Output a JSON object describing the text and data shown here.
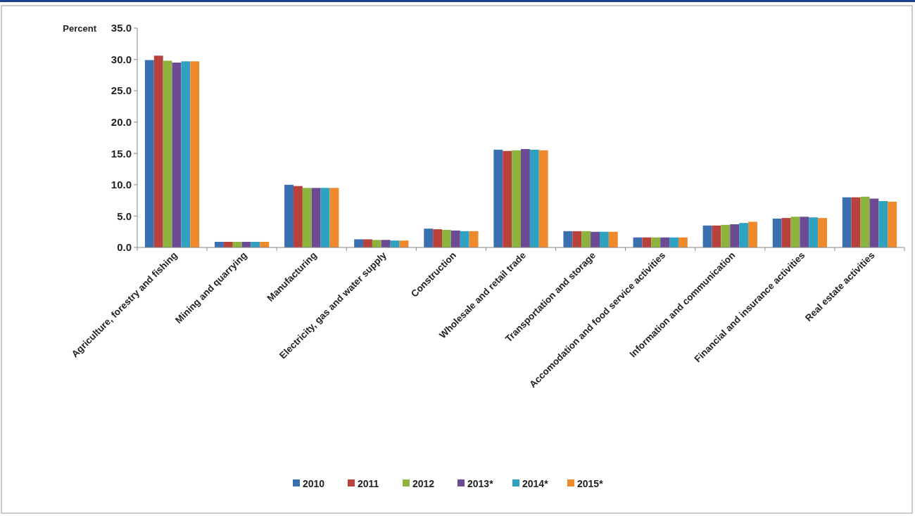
{
  "chart_data": {
    "type": "bar",
    "ylabel": "Percent",
    "categories": [
      "Agriculture, forestry and fishing",
      "Mining and quarrying",
      "Manufacturing",
      "Electricity, gas and water supply",
      "Construction",
      "Wholesale and retail trade",
      "Transportation and  storage",
      "Accomodation and food service activities",
      "Information and communication",
      "Financial and insurance activities",
      "Real estate activities"
    ],
    "series": [
      {
        "name": "2010",
        "color": "#3a6fb0",
        "values": [
          29.9,
          0.9,
          10.0,
          1.3,
          3.0,
          15.6,
          2.6,
          1.6,
          3.5,
          4.6,
          8.0
        ]
      },
      {
        "name": "2011",
        "color": "#b8413c",
        "values": [
          30.6,
          0.9,
          9.8,
          1.3,
          2.9,
          15.4,
          2.6,
          1.6,
          3.5,
          4.7,
          8.0
        ]
      },
      {
        "name": "2012",
        "color": "#8db33f",
        "values": [
          29.8,
          0.9,
          9.5,
          1.2,
          2.8,
          15.5,
          2.6,
          1.6,
          3.6,
          4.9,
          8.1
        ]
      },
      {
        "name": "2013*",
        "color": "#6d4a94",
        "values": [
          29.5,
          0.9,
          9.5,
          1.2,
          2.7,
          15.7,
          2.5,
          1.6,
          3.7,
          4.9,
          7.8
        ]
      },
      {
        "name": "2014*",
        "color": "#2fa2c1",
        "values": [
          29.7,
          0.9,
          9.5,
          1.1,
          2.6,
          15.6,
          2.5,
          1.6,
          3.9,
          4.8,
          7.4
        ]
      },
      {
        "name": "2015*",
        "color": "#ee8a2c",
        "values": [
          29.7,
          0.9,
          9.5,
          1.1,
          2.6,
          15.5,
          2.5,
          1.6,
          4.1,
          4.7,
          7.3
        ]
      }
    ],
    "ylim": [
      0,
      35
    ],
    "yticks": [
      {
        "value": 0,
        "label": "0.0"
      },
      {
        "value": 5,
        "label": "5.0"
      },
      {
        "value": 10,
        "label": "10.0"
      },
      {
        "value": 15,
        "label": "15.0"
      },
      {
        "value": 20,
        "label": "20.0"
      },
      {
        "value": 25,
        "label": "25.0"
      },
      {
        "value": 30,
        "label": "30.0"
      },
      {
        "value": 35,
        "label": "35.0"
      }
    ],
    "grid": false,
    "legend": "bottom"
  }
}
